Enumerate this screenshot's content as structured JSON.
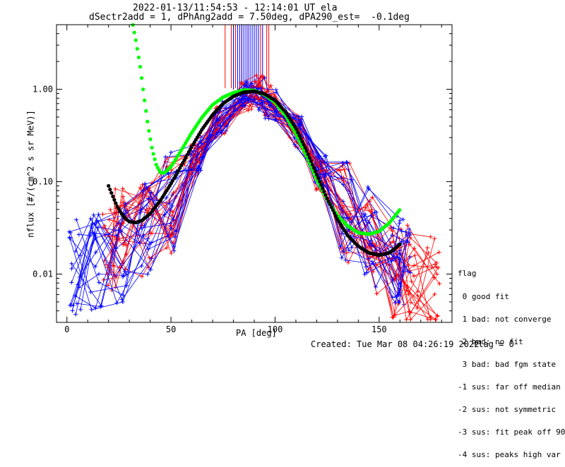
{
  "chart_data": {
    "type": "line",
    "title": "2022-01-13/11:54:53 - 12:14:01 UT ela",
    "subtitle": "dSectr2add = 1, dPhAng2add = 7.50deg, dPA290_est=  -0.1deg",
    "xlabel": "PA [deg]",
    "ylabel": "nflux [#/(cm^2 s sr MeV)]",
    "xlim": [
      -5,
      185
    ],
    "ylim": [
      0.003,
      5
    ],
    "yscale": "log",
    "x_ticks": [
      "0",
      "50",
      "100",
      "150"
    ],
    "y_ticks": [
      "0.01",
      "0.10",
      "1.00"
    ],
    "grid": false,
    "series": [
      {
        "name": "",
        "color": "#ff0000",
        "style": "thin lines with + markers (many overlapping sector sweeps)",
        "x": [
          20,
          26,
          38,
          50,
          62,
          74,
          86,
          92,
          98,
          110,
          122,
          134,
          146,
          158,
          166,
          176
        ],
        "y": [
          0.022,
          0.024,
          0.03,
          0.055,
          0.18,
          0.48,
          0.85,
          0.95,
          0.75,
          0.35,
          0.12,
          0.045,
          0.02,
          0.012,
          0.01,
          0.008
        ]
      },
      {
        "name": "",
        "color": "#0000ff",
        "style": "thin lines with + markers (many overlapping sector sweeps)",
        "x": [
          4,
          14,
          26,
          38,
          50,
          62,
          74,
          86,
          92,
          98,
          110,
          122,
          134,
          146,
          158,
          162
        ],
        "y": [
          0.012,
          0.014,
          0.017,
          0.035,
          0.06,
          0.2,
          0.5,
          0.85,
          0.9,
          0.7,
          0.35,
          0.13,
          0.05,
          0.025,
          0.016,
          0.015
        ]
      },
      {
        "name": "",
        "color": "#00ff00",
        "style": "thick dotted fit curve",
        "x": [
          31,
          33,
          35,
          37,
          39,
          41,
          43,
          45,
          47,
          50,
          55,
          60,
          65,
          70,
          75,
          80,
          85,
          90,
          95,
          100,
          105,
          110,
          115,
          120,
          125,
          130,
          135,
          140,
          145,
          150,
          155,
          160
        ],
        "y": [
          6.0,
          3.5,
          1.9,
          0.85,
          0.4,
          0.22,
          0.15,
          0.125,
          0.125,
          0.145,
          0.22,
          0.34,
          0.5,
          0.68,
          0.82,
          0.92,
          0.98,
          0.97,
          0.87,
          0.72,
          0.52,
          0.33,
          0.19,
          0.105,
          0.064,
          0.043,
          0.033,
          0.028,
          0.027,
          0.029,
          0.036,
          0.05
        ]
      },
      {
        "name": "",
        "color": "#000000",
        "style": "thick dotted fit curve",
        "x": [
          20,
          22,
          24,
          26,
          28,
          30,
          33,
          36,
          40,
          45,
          50,
          55,
          60,
          65,
          70,
          75,
          80,
          85,
          90,
          95,
          100,
          105,
          110,
          115,
          120,
          125,
          130,
          135,
          140,
          145,
          150,
          155,
          160
        ],
        "y": [
          0.09,
          0.07,
          0.055,
          0.046,
          0.04,
          0.037,
          0.036,
          0.038,
          0.045,
          0.063,
          0.095,
          0.15,
          0.24,
          0.37,
          0.53,
          0.7,
          0.84,
          0.93,
          0.95,
          0.89,
          0.76,
          0.57,
          0.38,
          0.22,
          0.12,
          0.066,
          0.039,
          0.026,
          0.02,
          0.017,
          0.016,
          0.017,
          0.021
        ]
      }
    ],
    "error_bars": {
      "note": "vertical error bars extending above the plot top near the peak",
      "red_x": [
        76,
        79,
        81,
        84,
        87,
        90,
        93,
        96,
        97
      ],
      "blue_x": [
        80,
        82,
        83,
        84,
        85,
        86,
        87,
        88,
        89,
        90,
        91,
        92,
        94
      ]
    }
  },
  "legend": {
    "title": "flag",
    "items": [
      " 0 good fit",
      " 1 bad: not converge",
      " 2 bad: no fit",
      " 3 bad: bad fgm state",
      "-1 sus: far off median",
      "-2 sus: not symmetric",
      "-3 sus: fit peak off 90",
      "-4 sus: peaks high var"
    ]
  },
  "footer": {
    "created": "Created: Tue Mar 08 04:26:19 2022",
    "flag": "flag = 0"
  }
}
